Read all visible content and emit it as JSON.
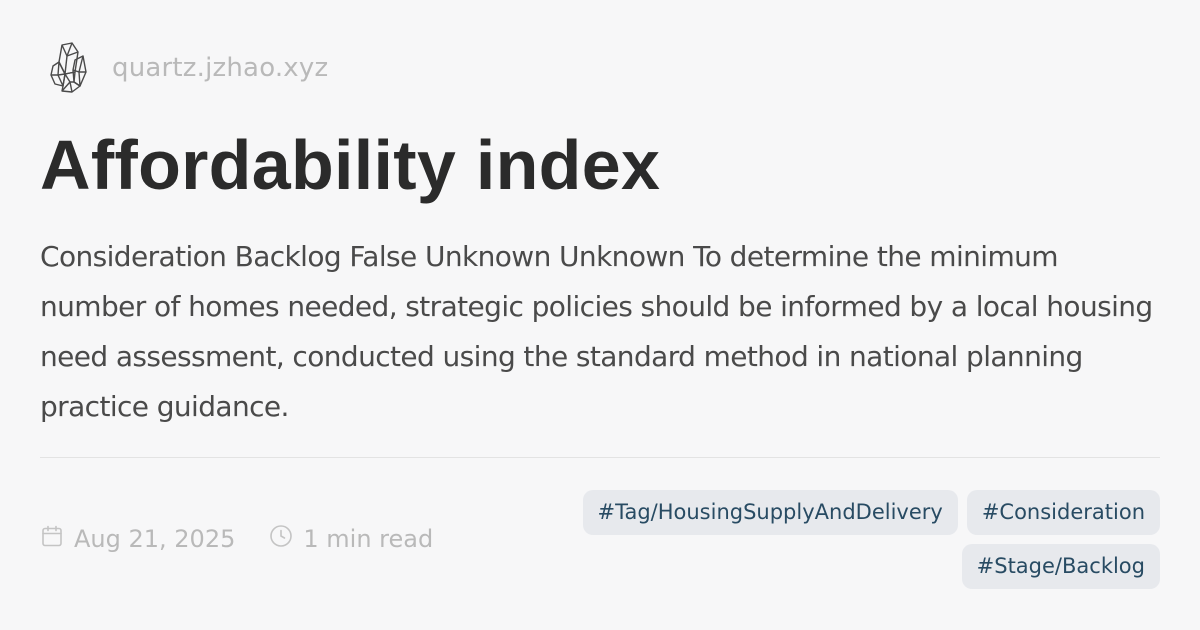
{
  "site": {
    "logo_icon": "crystal-logo-icon",
    "name": "quartz.jzhao.xyz"
  },
  "page": {
    "title": "Affordability index",
    "description": "Consideration Backlog False Unknown Unknown To determine the minimum number of homes needed, strategic policies should be informed by a local housing need assessment, conducted using the standard method in national planning practice guidance."
  },
  "meta": {
    "date_icon": "calendar-icon",
    "date": "Aug 21, 2025",
    "reading_time_icon": "clock-icon",
    "reading_time": "1 min read"
  },
  "tags": [
    "#Tag/HousingSupplyAndDelivery",
    "#Consideration",
    "#Stage/Backlog"
  ],
  "colors": {
    "background": "#f7f7f8",
    "title": "#2b2b2b",
    "muted": "#b9b9b9",
    "tag_background": "#e7e9ed",
    "tag_text": "#284b63"
  }
}
